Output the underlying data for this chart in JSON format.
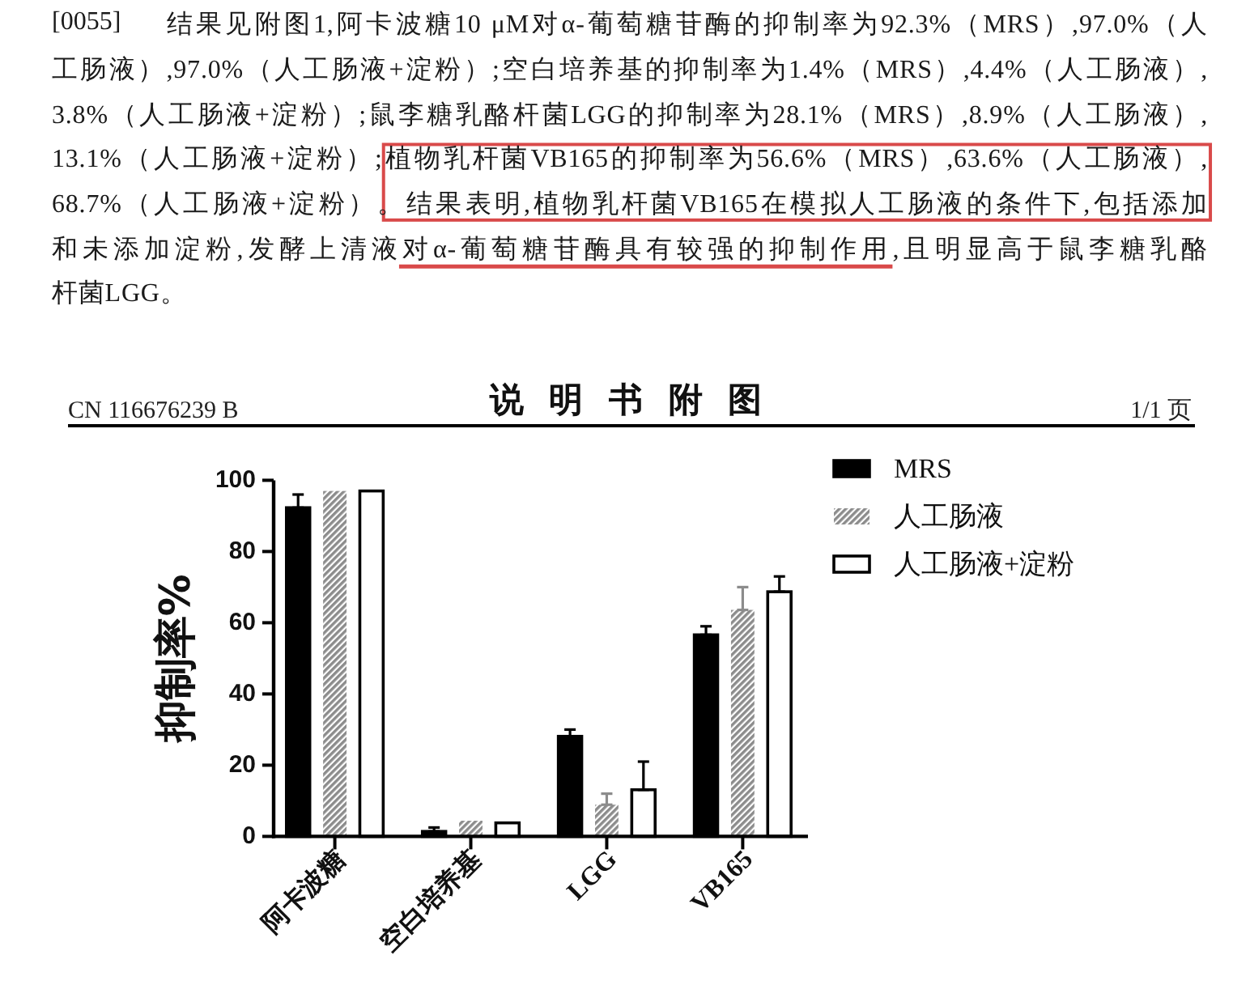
{
  "chart_data": {
    "type": "bar",
    "title": "说 明 书 附 图",
    "ylabel": "抑制率%",
    "categories": [
      "阿卡波糖",
      "空白培养基",
      "LGG",
      "VB165"
    ],
    "series": [
      {
        "name": "MRS",
        "color": "#000000",
        "values": [
          92.3,
          1.4,
          28.1,
          56.6
        ],
        "errors": [
          [
            92.3,
            96
          ],
          [
            1.4,
            2.5
          ],
          [
            28.1,
            30
          ],
          [
            56.6,
            59
          ]
        ]
      },
      {
        "name": "人工肠液",
        "color": "#8c8c8c",
        "values": [
          97.0,
          4.4,
          8.9,
          63.6
        ],
        "errors": [
          null,
          null,
          [
            8.9,
            12
          ],
          [
            63.6,
            70
          ]
        ]
      },
      {
        "name": "人工肠液+淀粉",
        "color": "#ffffff",
        "values": [
          97.0,
          3.8,
          13.1,
          68.7
        ],
        "errors": [
          null,
          null,
          [
            13.1,
            21
          ],
          [
            68.7,
            73
          ]
        ]
      }
    ],
    "ylim": [
      0,
      100
    ],
    "yticks": [
      0,
      20,
      40,
      60,
      80,
      100
    ],
    "legend": "top right",
    "annotations": [
      "CN 116676239 B",
      "1/1 页",
      "[0055]",
      "结果见附图1,阿卡波糖10 μM对α-葡萄糖苷酶的抑制率为92.3%（MRS）,97.0%（人",
      "工肠液）,97.0%（人工肠液+淀粉）;空白培养基的抑制率为1.4%（MRS）,4.4%（人工肠液）,",
      "3.8%（人工肠液+淀粉）;鼠李糖乳酪杆菌LGG的抑制率为28.1%（MRS）,8.9%（人工肠液）,",
      "13.1%（人工肠液+淀粉）;",
      "植物乳杆菌VB165的抑制率为56.6%（MRS）,63.6%（人工肠液）,",
      "68.7%（人工肠液+淀粉）。",
      "结果表明,植物乳杆菌VB165在模拟人工肠液的条件下,包括添加",
      "和未添加淀粉,发酵上清液",
      "对α-葡萄糖苷酶具有较强的抑制作用",
      ",且明显高于鼠李糖乳酪",
      "杆菌LGG。"
    ]
  }
}
